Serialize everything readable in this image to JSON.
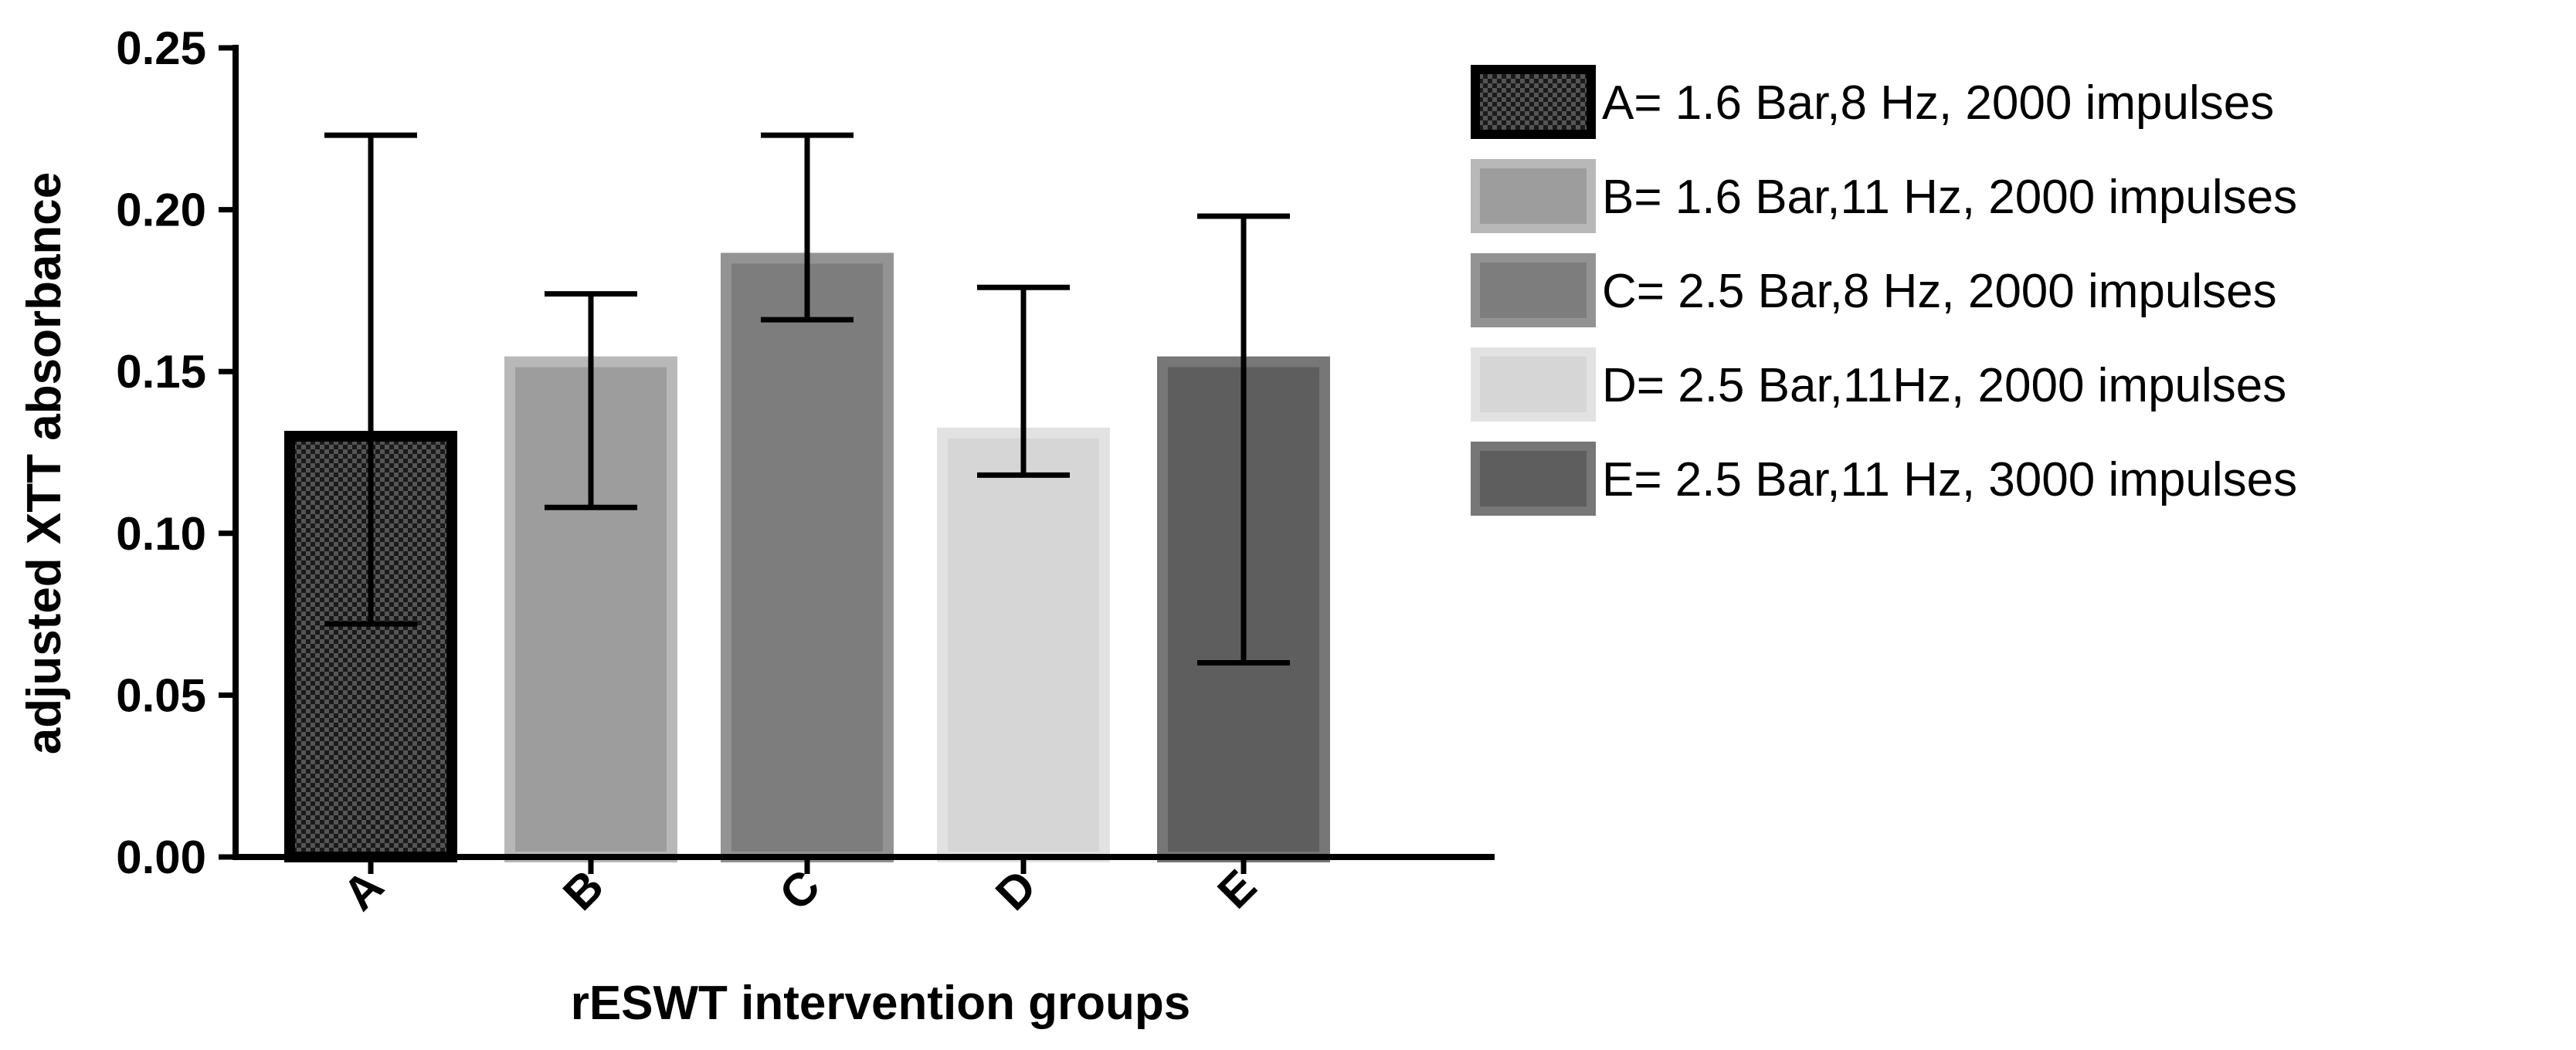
{
  "chart_data": {
    "type": "bar",
    "title": "",
    "xlabel": "rESWT intervention groups",
    "ylabel": "adjusted XTT absorbance",
    "ylim": [
      0,
      0.25
    ],
    "yticks": [
      "0.00",
      "0.05",
      "0.10",
      "0.15",
      "0.20",
      "0.25"
    ],
    "ytick_values": [
      0,
      0.05,
      0.1,
      0.15,
      0.2,
      0.25
    ],
    "categories": [
      "A",
      "B",
      "C",
      "D",
      "E"
    ],
    "values": [
      0.13,
      0.153,
      0.185,
      0.131,
      0.153
    ],
    "error_low": [
      0.072,
      0.108,
      0.166,
      0.118,
      0.06
    ],
    "error_high": [
      0.223,
      0.174,
      0.223,
      0.176,
      0.198
    ],
    "colors": [
      "#2a2a2a",
      "#9d9d9d",
      "#7d7d7d",
      "#d6d6d6",
      "#5e5e5e"
    ],
    "edge_colors": [
      "#000000",
      "#b8b8b8",
      "#939393",
      "#e2e2e2",
      "#777777"
    ],
    "patterns": [
      "checker",
      "solid",
      "solid",
      "solid",
      "solid"
    ],
    "legend_position": "right",
    "legend": [
      "A= 1.6 Bar,8 Hz,  2000 impulses",
      "B= 1.6 Bar,11 Hz, 2000 impulses",
      "C= 2.5 Bar,8 Hz, 2000 impulses",
      "D= 2.5 Bar,11Hz, 2000 impulses",
      "E= 2.5 Bar,11 Hz, 3000 impulses"
    ]
  }
}
